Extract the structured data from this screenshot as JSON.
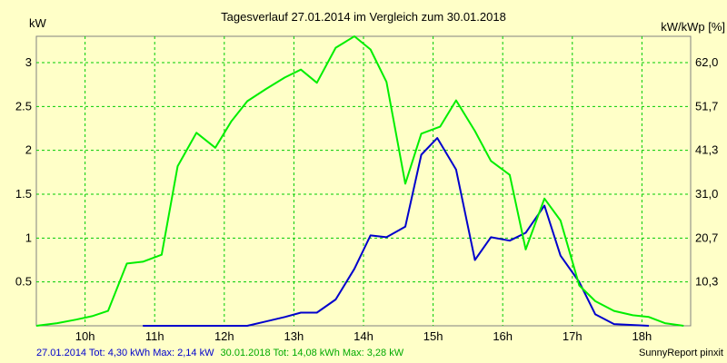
{
  "chart_data": {
    "type": "line",
    "title": "Tagesverlauf 27.01.2014 im Vergleich zum 30.01.2018",
    "ylabel_left": "kW",
    "ylabel_right": "kW/kWp [%]",
    "xlim": [
      9.3,
      18.7
    ],
    "ylim": [
      0,
      3.3
    ],
    "x_ticks": [
      10,
      11,
      12,
      13,
      14,
      15,
      16,
      17,
      18
    ],
    "x_tick_labels": [
      "10h",
      "11h",
      "12h",
      "13h",
      "14h",
      "15h",
      "16h",
      "17h",
      "18h"
    ],
    "y_ticks": [
      0.5,
      1,
      1.5,
      2,
      2.5,
      3
    ],
    "y_tick_labels": [
      "0.5",
      "1",
      "1.5",
      "2",
      "2.5",
      "3"
    ],
    "y2_tick_labels": [
      "10,3",
      "20,7",
      "31,0",
      "41,3",
      "51,7",
      "62,0"
    ],
    "grid": true,
    "grid_color": "#00cc00",
    "series": [
      {
        "color": "#0000cc",
        "x": [
          10.83,
          12.33,
          12.6,
          12.87,
          13.1,
          13.33,
          13.6,
          13.87,
          14.1,
          14.33,
          14.6,
          14.83,
          15.06,
          15.33,
          15.6,
          15.83,
          16.1,
          16.33,
          16.6,
          16.83,
          17.1,
          17.33,
          17.6,
          18.1
        ],
        "y": [
          0,
          0,
          0.05,
          0.1,
          0.15,
          0.15,
          0.3,
          0.65,
          1.03,
          1.01,
          1.13,
          1.95,
          2.14,
          1.78,
          0.75,
          1.01,
          0.97,
          1.06,
          1.37,
          0.8,
          0.5,
          0.13,
          0.02,
          0
        ]
      },
      {
        "color": "#00ee00",
        "x": [
          9.3,
          9.6,
          9.87,
          10.1,
          10.33,
          10.6,
          10.83,
          11.1,
          11.33,
          11.6,
          11.87,
          12.1,
          12.33,
          12.6,
          12.87,
          13.1,
          13.33,
          13.6,
          13.87,
          14.1,
          14.33,
          14.6,
          14.83,
          15.1,
          15.33,
          15.6,
          15.83,
          16.1,
          16.33,
          16.6,
          16.83,
          17.1,
          17.33,
          17.6,
          17.87,
          18.1,
          18.33,
          18.6
        ],
        "y": [
          0,
          0.03,
          0.07,
          0.11,
          0.17,
          0.71,
          0.73,
          0.81,
          1.82,
          2.2,
          2.03,
          2.33,
          2.56,
          2.7,
          2.83,
          2.92,
          2.77,
          3.17,
          3.3,
          3.15,
          2.78,
          1.62,
          2.19,
          2.27,
          2.57,
          2.22,
          1.88,
          1.72,
          0.87,
          1.45,
          1.2,
          0.46,
          0.28,
          0.17,
          0.12,
          0.1,
          0.03,
          0
        ]
      }
    ]
  },
  "footer": {
    "blue_text": "27.01.2014 Tot: 4,30 kWh Max: 2,14 kW",
    "green_text": "30.01.2018 Tot: 14,08 kWh Max: 3,28 kW",
    "source": "SunnyReport pinxit",
    "blue_color": "#0000cc",
    "green_color": "#00aa00"
  }
}
